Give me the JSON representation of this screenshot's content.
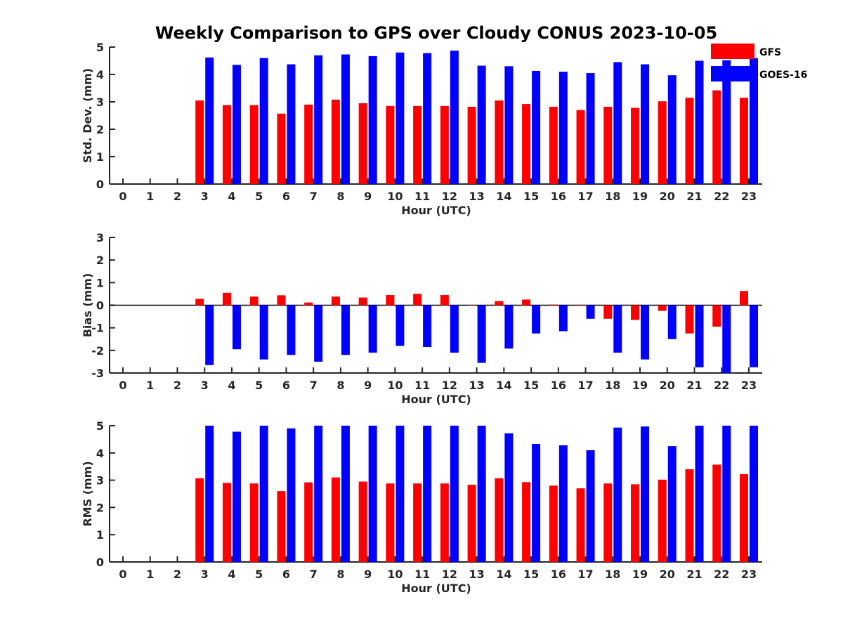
{
  "chart_data": [
    {
      "type": "bar",
      "title": "Weekly Comparison to GPS over Cloudy CONUS 2023-10-05",
      "xlabel": "Hour (UTC)",
      "ylabel": "Std. Dev. (mm)",
      "categories": [
        "0",
        "1",
        "2",
        "3",
        "4",
        "5",
        "6",
        "7",
        "8",
        "9",
        "10",
        "11",
        "12",
        "13",
        "14",
        "15",
        "16",
        "17",
        "18",
        "19",
        "20",
        "21",
        "22",
        "23"
      ],
      "ylim": [
        0,
        5
      ],
      "yticks": [
        0,
        1,
        2,
        3,
        4,
        5
      ],
      "legend": "top-right",
      "series": [
        {
          "name": "GFS",
          "color": "#ff0000",
          "values": [
            null,
            null,
            null,
            3.05,
            2.88,
            2.88,
            2.57,
            2.9,
            3.08,
            2.95,
            2.85,
            2.85,
            2.85,
            2.82,
            3.05,
            2.92,
            2.82,
            2.7,
            2.82,
            2.78,
            3.02,
            3.15,
            3.42,
            3.15
          ]
        },
        {
          "name": "GOES-16",
          "color": "#0000ff",
          "values": [
            null,
            null,
            null,
            4.62,
            4.35,
            4.6,
            4.37,
            4.7,
            4.73,
            4.67,
            4.8,
            4.78,
            4.87,
            4.32,
            4.3,
            4.13,
            4.1,
            4.05,
            4.45,
            4.37,
            3.97,
            4.5,
            4.52,
            4.6
          ]
        }
      ]
    },
    {
      "type": "bar",
      "xlabel": "Hour (UTC)",
      "ylabel": "Bias (mm)",
      "categories": [
        "0",
        "1",
        "2",
        "3",
        "4",
        "5",
        "6",
        "7",
        "8",
        "9",
        "10",
        "11",
        "12",
        "13",
        "14",
        "15",
        "16",
        "17",
        "18",
        "19",
        "20",
        "21",
        "22",
        "23"
      ],
      "ylim": [
        -3,
        3
      ],
      "yticks": [
        -3,
        -2,
        -1,
        0,
        1,
        2,
        3
      ],
      "zero_line": true,
      "series": [
        {
          "name": "GFS",
          "color": "#ff0000",
          "values": [
            null,
            null,
            null,
            0.28,
            0.55,
            0.38,
            0.44,
            0.12,
            0.38,
            0.34,
            0.45,
            0.5,
            0.45,
            0.0,
            0.18,
            0.25,
            0.03,
            0.02,
            -0.6,
            -0.65,
            -0.25,
            -1.25,
            -0.95,
            0.63
          ]
        },
        {
          "name": "GOES-16",
          "color": "#0000ff",
          "values": [
            null,
            null,
            null,
            -2.65,
            -1.95,
            -2.4,
            -2.2,
            -2.5,
            -2.2,
            -2.1,
            -1.8,
            -1.85,
            -2.1,
            -2.55,
            -1.92,
            -1.25,
            -1.15,
            -0.6,
            -2.1,
            -2.4,
            -1.5,
            -2.75,
            -3.0,
            -2.75
          ]
        }
      ]
    },
    {
      "type": "bar",
      "xlabel": "Hour (UTC)",
      "ylabel": "RMS (mm)",
      "categories": [
        "0",
        "1",
        "2",
        "3",
        "4",
        "5",
        "6",
        "7",
        "8",
        "9",
        "10",
        "11",
        "12",
        "13",
        "14",
        "15",
        "16",
        "17",
        "18",
        "19",
        "20",
        "21",
        "22",
        "23"
      ],
      "ylim": [
        0,
        5
      ],
      "yticks": [
        0,
        1,
        2,
        3,
        4,
        5
      ],
      "series": [
        {
          "name": "GFS",
          "color": "#ff0000",
          "values": [
            null,
            null,
            null,
            3.07,
            2.9,
            2.88,
            2.6,
            2.92,
            3.1,
            2.95,
            2.88,
            2.88,
            2.88,
            2.83,
            3.07,
            2.93,
            2.8,
            2.7,
            2.88,
            2.85,
            3.02,
            3.4,
            3.57,
            3.22
          ]
        },
        {
          "name": "GOES-16",
          "color": "#0000ff",
          "values": [
            null,
            null,
            null,
            5.0,
            4.78,
            5.0,
            4.9,
            5.0,
            5.0,
            5.0,
            5.0,
            5.0,
            5.0,
            5.0,
            4.72,
            4.33,
            4.28,
            4.1,
            4.93,
            4.97,
            4.25,
            5.0,
            5.0,
            5.0
          ]
        }
      ]
    }
  ]
}
